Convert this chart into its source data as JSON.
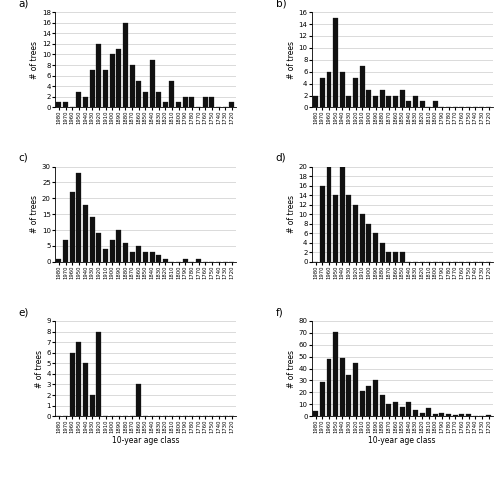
{
  "x_labels": [
    "1980",
    "1970",
    "1960",
    "1950",
    "1940",
    "1930",
    "1920",
    "1910",
    "1900",
    "1890",
    "1880",
    "1870",
    "1860",
    "1850",
    "1840",
    "1830",
    "1820",
    "1810",
    "1800",
    "1790",
    "1780",
    "1770",
    "1760",
    "1750",
    "1740",
    "1730",
    "1720"
  ],
  "panel_a": {
    "label": "a)",
    "values": [
      1,
      1,
      0,
      3,
      2,
      7,
      12,
      7,
      10,
      11,
      16,
      8,
      5,
      3,
      9,
      3,
      1,
      5,
      1,
      2,
      2,
      0,
      2,
      2,
      0,
      0,
      1
    ],
    "ylim": [
      0,
      18
    ],
    "yticks": [
      0,
      2,
      4,
      6,
      8,
      10,
      12,
      14,
      16,
      18
    ]
  },
  "panel_b": {
    "label": "b)",
    "values": [
      2,
      5,
      6,
      15,
      6,
      2,
      5,
      7,
      3,
      2,
      3,
      2,
      2,
      3,
      1,
      2,
      1,
      0,
      1,
      0,
      0,
      0,
      0,
      0,
      0,
      0,
      0
    ],
    "ylim": [
      0,
      16
    ],
    "yticks": [
      0,
      2,
      4,
      6,
      8,
      10,
      12,
      14,
      16
    ]
  },
  "panel_c": {
    "label": "c)",
    "values": [
      1,
      7,
      22,
      28,
      18,
      14,
      9,
      4,
      7,
      10,
      6,
      3,
      5,
      3,
      3,
      2,
      1,
      0,
      0,
      1,
      0,
      1,
      0,
      0,
      0,
      0,
      0
    ],
    "ylim": [
      0,
      30
    ],
    "yticks": [
      0,
      5,
      10,
      15,
      20,
      25,
      30
    ]
  },
  "panel_d": {
    "label": "d)",
    "values": [
      0,
      16,
      20,
      14,
      22,
      14,
      12,
      10,
      8,
      6,
      4,
      2,
      2,
      2,
      0,
      0,
      0,
      0,
      0,
      0,
      0,
      0,
      0,
      0,
      0,
      0,
      0
    ],
    "ylim": [
      0,
      20
    ],
    "yticks": [
      0,
      2,
      4,
      6,
      8,
      10,
      12,
      14,
      16,
      18,
      20
    ]
  },
  "panel_e": {
    "label": "e)",
    "values": [
      0,
      0,
      6,
      7,
      5,
      2,
      8,
      0,
      0,
      0,
      0,
      0,
      3,
      0,
      0,
      0,
      0,
      0,
      0,
      0,
      0,
      0,
      0,
      0,
      0,
      0,
      0
    ],
    "ylim": [
      0,
      9
    ],
    "yticks": [
      0,
      1,
      2,
      3,
      4,
      5,
      6,
      7,
      8,
      9
    ]
  },
  "panel_f": {
    "label": "f)",
    "values": [
      4,
      29,
      48,
      71,
      49,
      35,
      45,
      21,
      25,
      30,
      18,
      10,
      12,
      8,
      12,
      5,
      3,
      7,
      2,
      3,
      2,
      1,
      2,
      2,
      0,
      0,
      1
    ],
    "ylim": [
      0,
      80
    ],
    "yticks": [
      0,
      10,
      20,
      30,
      40,
      50,
      60,
      70,
      80
    ]
  },
  "ylabel": "# of trees",
  "xlabel": "10-year age class",
  "bar_color": "#111111",
  "bg_color": "#ffffff",
  "grid_color": "#cccccc"
}
